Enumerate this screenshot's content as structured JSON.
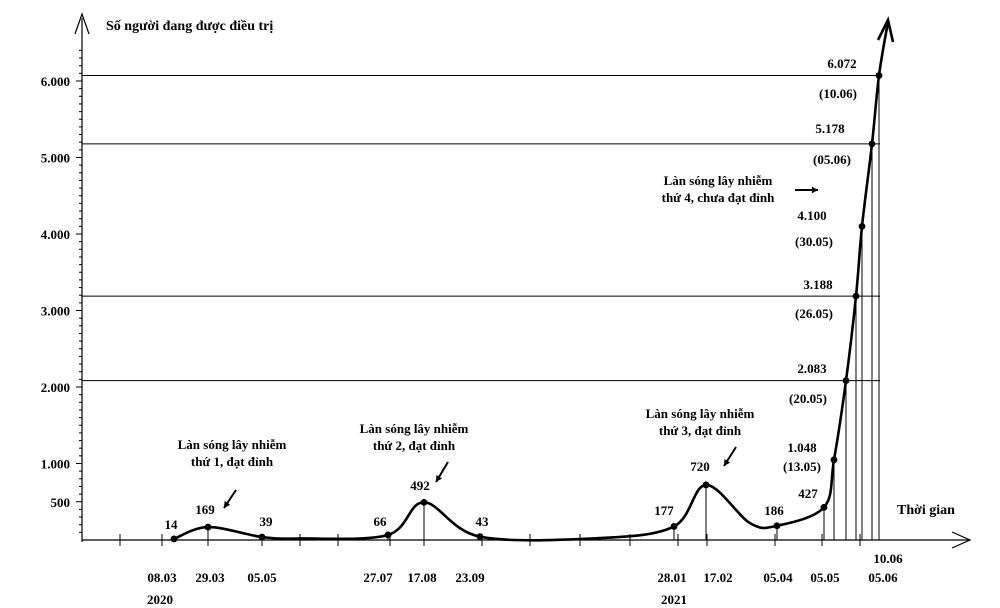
{
  "chart_data": {
    "type": "line",
    "ylabel": "Số người đang được điều trị",
    "xlabel": "Thời gian",
    "y_ticks": [
      "500",
      "1.000",
      "2.000",
      "3.000",
      "4.000",
      "5.000",
      "6.000"
    ],
    "y_tick_values": [
      500,
      1000,
      2000,
      3000,
      4000,
      5000,
      6000
    ],
    "ylim": [
      0,
      6500
    ],
    "points": [
      {
        "date": "08.03.2020",
        "value": 14,
        "value_label": "14",
        "date_label": "08.03"
      },
      {
        "date": "29.03.2020",
        "value": 169,
        "value_label": "169",
        "date_label": "29.03"
      },
      {
        "date": "05.05.2020",
        "value": 39,
        "value_label": "39",
        "date_label": "05.05"
      },
      {
        "date": "27.07.2020",
        "value": 66,
        "value_label": "66",
        "date_label": "27.07"
      },
      {
        "date": "17.08.2020",
        "value": 492,
        "value_label": "492",
        "date_label": "17.08"
      },
      {
        "date": "23.09.2020",
        "value": 43,
        "value_label": "43",
        "date_label": "23.09"
      },
      {
        "date": "28.01.2021",
        "value": 177,
        "value_label": "177",
        "date_label": "28.01"
      },
      {
        "date": "17.02.2021",
        "value": 720,
        "value_label": "720",
        "date_label": "17.02"
      },
      {
        "date": "05.04.2021",
        "value": 186,
        "value_label": "186",
        "date_label": "05.04"
      },
      {
        "date": "05.05.2021",
        "value": 427,
        "value_label": "427",
        "date_label": "05.05"
      },
      {
        "date": "13.05.2021",
        "value": 1048,
        "value_label": "1.048",
        "date_label": "(13.05)"
      },
      {
        "date": "20.05.2021",
        "value": 2083,
        "value_label": "2.083",
        "date_label": "(20.05)"
      },
      {
        "date": "26.05.2021",
        "value": 3188,
        "value_label": "3.188",
        "date_label": "(26.05)"
      },
      {
        "date": "30.05.2021",
        "value": 4100,
        "value_label": "4.100",
        "date_label": "(30.05)"
      },
      {
        "date": "05.06.2021",
        "value": 5178,
        "value_label": "5.178",
        "date_label": "(05.06)"
      },
      {
        "date": "10.06.2021",
        "value": 6072,
        "value_label": "6.072",
        "date_label": "(10.06)"
      }
    ],
    "x_axis_labels": [
      "08.03",
      "29.03",
      "05.05",
      "27.07",
      "17.08",
      "23.09",
      "28.01",
      "17.02",
      "05.04",
      "05.05",
      "10.06",
      "05.06"
    ],
    "year_labels": [
      "2020",
      "2021"
    ],
    "annotations": [
      {
        "lines": [
          "Làn sóng lây nhiễm",
          "thứ 1, đạt đỉnh"
        ]
      },
      {
        "lines": [
          "Làn sóng lây nhiễm",
          "thứ 2, đạt đỉnh"
        ]
      },
      {
        "lines": [
          "Làn sóng lây nhiễm",
          "thứ 3, đạt đỉnh"
        ]
      },
      {
        "lines": [
          "Làn sóng lây nhiễm",
          "thứ 4, chưa đạt đỉnh"
        ]
      }
    ]
  }
}
